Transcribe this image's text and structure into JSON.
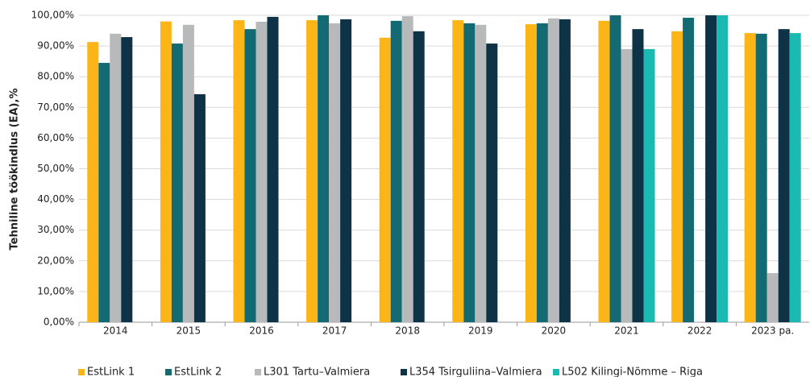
{
  "chart_data": {
    "type": "bar",
    "y_label": "Tehniline töökindlus (EA),%",
    "categories": [
      "2014",
      "2015",
      "2016",
      "2017",
      "2018",
      "2019",
      "2020",
      "2021",
      "2022",
      "2023 pa."
    ],
    "series": [
      {
        "name": "EstLink 1",
        "color": "#fbb516",
        "values": [
          91.3,
          98,
          98.4,
          98.4,
          92.7,
          98.4,
          97.1,
          98.2,
          94.8,
          94.2
        ]
      },
      {
        "name": "EstLink 2",
        "color": "#136a73",
        "values": [
          84.5,
          90.8,
          95.5,
          100,
          98.2,
          97.4,
          97.4,
          100,
          99.2,
          94
        ]
      },
      {
        "name": "L301 Tartu–Valmiera",
        "color": "#b7b9bb",
        "values": [
          94,
          96.9,
          97.9,
          97.4,
          99.7,
          96.9,
          99,
          89,
          null,
          16
        ]
      },
      {
        "name": "L354 Tsirguliina–Valmiera",
        "color": "#0e3346",
        "values": [
          92.9,
          74.3,
          99.5,
          98.7,
          94.8,
          90.8,
          98.7,
          95.5,
          100,
          95.5
        ]
      },
      {
        "name": "L502 Kilingi-Nõmme – Riga",
        "color": "#1ab9b1",
        "values": [
          null,
          null,
          null,
          null,
          null,
          null,
          null,
          89,
          100,
          94.2
        ]
      }
    ],
    "ylim": [
      0,
      100
    ],
    "yticks": [
      {
        "value": 0,
        "label": "0,00%"
      },
      {
        "value": 10,
        "label": "10,00%"
      },
      {
        "value": 20,
        "label": "20,00%"
      },
      {
        "value": 30,
        "label": "30,00%"
      },
      {
        "value": 40,
        "label": "40,00%"
      },
      {
        "value": 50,
        "label": "50,00%"
      },
      {
        "value": 60,
        "label": "60,00%"
      },
      {
        "value": 70,
        "label": "70,00%"
      },
      {
        "value": 80,
        "label": "80,00%"
      },
      {
        "value": 90,
        "label": "90,00%"
      },
      {
        "value": 100,
        "label": "100,00%"
      }
    ],
    "grid": true,
    "legend": "bottom"
  }
}
